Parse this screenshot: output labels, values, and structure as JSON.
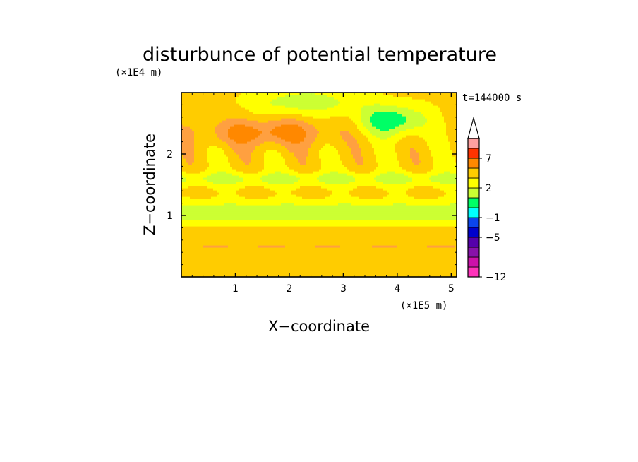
{
  "chart_data": {
    "type": "heatmap",
    "title": "disturbunce of potential temperature",
    "xlabel": "X−coordinate",
    "ylabel": "Z−coordinate",
    "x_unit": "(×1E5 m)",
    "y_unit": "(×1E4 m)",
    "time_label": "t=144000 s",
    "xlim": [
      0,
      5.1
    ],
    "ylim": [
      0,
      3
    ],
    "x_ticks": [
      {
        "value": 1,
        "label": "1"
      },
      {
        "value": 2,
        "label": "2"
      },
      {
        "value": 3,
        "label": "3"
      },
      {
        "value": 4,
        "label": "4"
      },
      {
        "value": 5,
        "label": "5"
      }
    ],
    "y_ticks": [
      {
        "value": 1,
        "label": "1"
      },
      {
        "value": 2,
        "label": "2"
      }
    ],
    "colorbar": {
      "extend": "max",
      "levels": [
        -12,
        -10,
        -8,
        -6,
        -5,
        -3,
        -1,
        0,
        1,
        2,
        3,
        5,
        7,
        9,
        11
      ],
      "labels": [
        {
          "value": 7,
          "label": "7"
        },
        {
          "value": 2,
          "label": "2"
        },
        {
          "value": -1,
          "label": "−1"
        },
        {
          "value": -5,
          "label": "−5"
        },
        {
          "value": -12,
          "label": "−12"
        }
      ],
      "colors": [
        "#ff33bb",
        "#cc11aa",
        "#8811aa",
        "#5500aa",
        "#0000cc",
        "#0b45ee",
        "#00ffff",
        "#00ff66",
        "#ccff33",
        "#ffff00",
        "#ffcc00",
        "#ff8800",
        "#ff3300",
        "#ffa0a0",
        "#ffffff"
      ],
      "extend_color": "#ffffff"
    },
    "field_layers": [
      {
        "level": 0.5,
        "color": "#ffcc00"
      },
      {
        "level": 1.5,
        "color": "#ffff00"
      },
      {
        "level": 2.5,
        "color": "#ccff33"
      },
      {
        "level": 3.5,
        "color": "#00ff66"
      },
      {
        "level": 4.5,
        "color": "#00ffff"
      },
      {
        "level": 5.5,
        "color": "#0b45ee"
      },
      {
        "level": 6.5,
        "color": "#0000cc"
      },
      {
        "level": -0.5,
        "color": "#ffa040"
      },
      {
        "level": -1.5,
        "color": "#ff8800"
      }
    ]
  }
}
